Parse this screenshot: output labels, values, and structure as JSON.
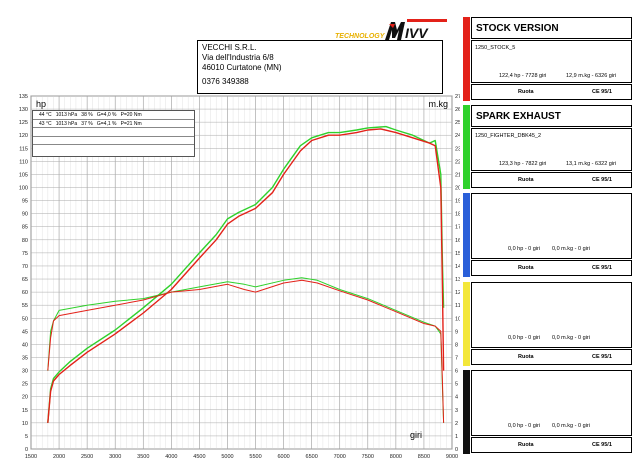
{
  "header": {
    "logo_text": "TECHNOLOGY",
    "logo_brand": "MIVV"
  },
  "dealer": {
    "name": "VECCHI S.R.L.",
    "address1": "Via dell'Industria 6/8",
    "address2": "46010 Curtatone (MN)",
    "phone": "0376 349388"
  },
  "conditions": [
    "44 °C   1013 hPa   38 %   G=4,0 %   P=20 Nm",
    "43 °C   1013 hPa   37 %   G=4,1 %   P=21 Nm",
    "",
    "",
    ""
  ],
  "panels": [
    {
      "color": "#e32119",
      "title": "STOCK VERSION",
      "code": "1250_STOCK_5",
      "hp": "122,4 hp - 7728 giri",
      "torque": "12,9 m.kg - 6326 giri",
      "foot_left": "Ruota",
      "foot_right": "CE 95/1"
    },
    {
      "color": "#2fd12b",
      "title": "SPARK EXHAUST",
      "code": "1250_FIGHTER_DBK45_2",
      "hp": "123,3 hp - 7822 giri",
      "torque": "13,1 m.kg - 6322 giri",
      "foot_left": "Ruota",
      "foot_right": "CE 95/1"
    },
    {
      "color": "#2a5fd9",
      "title": "",
      "code": "",
      "hp": "0,0 hp - 0 giri",
      "torque": "0,0 m.kg - 0 giri",
      "foot_left": "Ruota",
      "foot_right": "CE 95/1"
    },
    {
      "color": "#f3e73a",
      "title": "",
      "code": "",
      "hp": "0,0 hp - 0 giri",
      "torque": "0,0 m.kg - 0 giri",
      "foot_left": "Ruota",
      "foot_right": "CE 95/1"
    },
    {
      "color": "#111111",
      "title": "",
      "code": "",
      "hp": "0,0 hp - 0 giri",
      "torque": "0,0 m.kg - 0 giri",
      "foot_left": "Ruota",
      "foot_right": "CE 95/1"
    }
  ],
  "chart_data": {
    "type": "line",
    "xlabel": "giri",
    "ylabel_left": "hp",
    "ylabel_right": "m.kg",
    "xlim": [
      1500,
      9000
    ],
    "ylim_left": [
      0,
      135
    ],
    "ylim_right": [
      0,
      27
    ],
    "x_ticks": [
      1500,
      2000,
      2500,
      3000,
      3500,
      4000,
      4500,
      5000,
      5500,
      6000,
      6500,
      7000,
      7500,
      8000,
      8500,
      9000
    ],
    "y_ticks_left": [
      0,
      5,
      10,
      15,
      20,
      25,
      30,
      35,
      40,
      45,
      50,
      55,
      60,
      65,
      70,
      75,
      80,
      85,
      90,
      95,
      100,
      105,
      110,
      115,
      120,
      125,
      130,
      135
    ],
    "y_ticks_right": [
      0,
      1,
      2,
      3,
      4,
      5,
      6,
      7,
      8,
      9,
      10,
      11,
      12,
      13,
      14,
      15,
      16,
      17,
      18,
      19,
      20,
      21,
      22,
      23,
      24,
      25,
      26,
      27
    ],
    "grid": true,
    "series": [
      {
        "name": "STOCK VERSION",
        "kind": "power",
        "axis": "left",
        "color": "#e32119",
        "points": [
          [
            1800,
            10
          ],
          [
            1850,
            22
          ],
          [
            1900,
            26
          ],
          [
            2000,
            28.5
          ],
          [
            2200,
            32
          ],
          [
            2500,
            37
          ],
          [
            3000,
            44
          ],
          [
            3500,
            52
          ],
          [
            4000,
            61
          ],
          [
            4500,
            73
          ],
          [
            4800,
            80
          ],
          [
            5000,
            86
          ],
          [
            5200,
            89
          ],
          [
            5500,
            92
          ],
          [
            5800,
            98
          ],
          [
            6000,
            105
          ],
          [
            6300,
            114
          ],
          [
            6500,
            118
          ],
          [
            6800,
            120
          ],
          [
            7000,
            120
          ],
          [
            7300,
            121
          ],
          [
            7500,
            122
          ],
          [
            7728,
            122.4
          ],
          [
            8000,
            121
          ],
          [
            8300,
            119
          ],
          [
            8600,
            117
          ],
          [
            8700,
            116
          ],
          [
            8800,
            100
          ],
          [
            8830,
            60
          ],
          [
            8850,
            30
          ]
        ]
      },
      {
        "name": "SPARK EXHAUST",
        "kind": "power",
        "axis": "left",
        "color": "#2fd12b",
        "points": [
          [
            1800,
            10
          ],
          [
            1850,
            23
          ],
          [
            1900,
            27
          ],
          [
            2000,
            29.5
          ],
          [
            2200,
            33.5
          ],
          [
            2500,
            38.5
          ],
          [
            3000,
            45.5
          ],
          [
            3500,
            54
          ],
          [
            4000,
            63
          ],
          [
            4500,
            75
          ],
          [
            4800,
            82
          ],
          [
            5000,
            88
          ],
          [
            5200,
            90.5
          ],
          [
            5500,
            93.5
          ],
          [
            5800,
            100
          ],
          [
            6000,
            107
          ],
          [
            6300,
            116
          ],
          [
            6500,
            119
          ],
          [
            6800,
            121
          ],
          [
            7000,
            121
          ],
          [
            7300,
            122
          ],
          [
            7500,
            122.8
          ],
          [
            7822,
            123.3
          ],
          [
            8000,
            122
          ],
          [
            8300,
            120
          ],
          [
            8600,
            117
          ],
          [
            8700,
            118
          ],
          [
            8800,
            105
          ],
          [
            8830,
            70
          ],
          [
            8850,
            54
          ]
        ]
      },
      {
        "name": "STOCK VERSION",
        "kind": "torque",
        "axis": "right",
        "color": "#e32119",
        "points": [
          [
            1800,
            6
          ],
          [
            1850,
            8.5
          ],
          [
            1900,
            9.8
          ],
          [
            2000,
            10.2
          ],
          [
            2500,
            10.6
          ],
          [
            3000,
            11
          ],
          [
            3500,
            11.4
          ],
          [
            4000,
            12
          ],
          [
            4500,
            12.2
          ],
          [
            5000,
            12.6
          ],
          [
            5300,
            12.2
          ],
          [
            5500,
            12
          ],
          [
            6000,
            12.7
          ],
          [
            6326,
            12.9
          ],
          [
            6600,
            12.7
          ],
          [
            7000,
            12.1
          ],
          [
            7500,
            11.4
          ],
          [
            8000,
            10.5
          ],
          [
            8500,
            9.6
          ],
          [
            8700,
            9.4
          ],
          [
            8800,
            9
          ],
          [
            8830,
            5
          ],
          [
            8850,
            2
          ]
        ]
      },
      {
        "name": "SPARK EXHAUST",
        "kind": "torque",
        "axis": "right",
        "color": "#2fd12b",
        "points": [
          [
            1800,
            6
          ],
          [
            1850,
            9
          ],
          [
            1900,
            9.8
          ],
          [
            2000,
            10.6
          ],
          [
            2500,
            11
          ],
          [
            3000,
            11.3
          ],
          [
            3500,
            11.5
          ],
          [
            4000,
            12
          ],
          [
            4500,
            12.4
          ],
          [
            5000,
            12.8
          ],
          [
            5300,
            12.6
          ],
          [
            5500,
            12.4
          ],
          [
            6000,
            12.9
          ],
          [
            6322,
            13.1
          ],
          [
            6600,
            12.9
          ],
          [
            7000,
            12.2
          ],
          [
            7500,
            11.5
          ],
          [
            8000,
            10.6
          ],
          [
            8500,
            9.7
          ],
          [
            8700,
            9.4
          ],
          [
            8800,
            8.8
          ],
          [
            8830,
            4.5
          ],
          [
            8850,
            2
          ]
        ]
      }
    ]
  }
}
